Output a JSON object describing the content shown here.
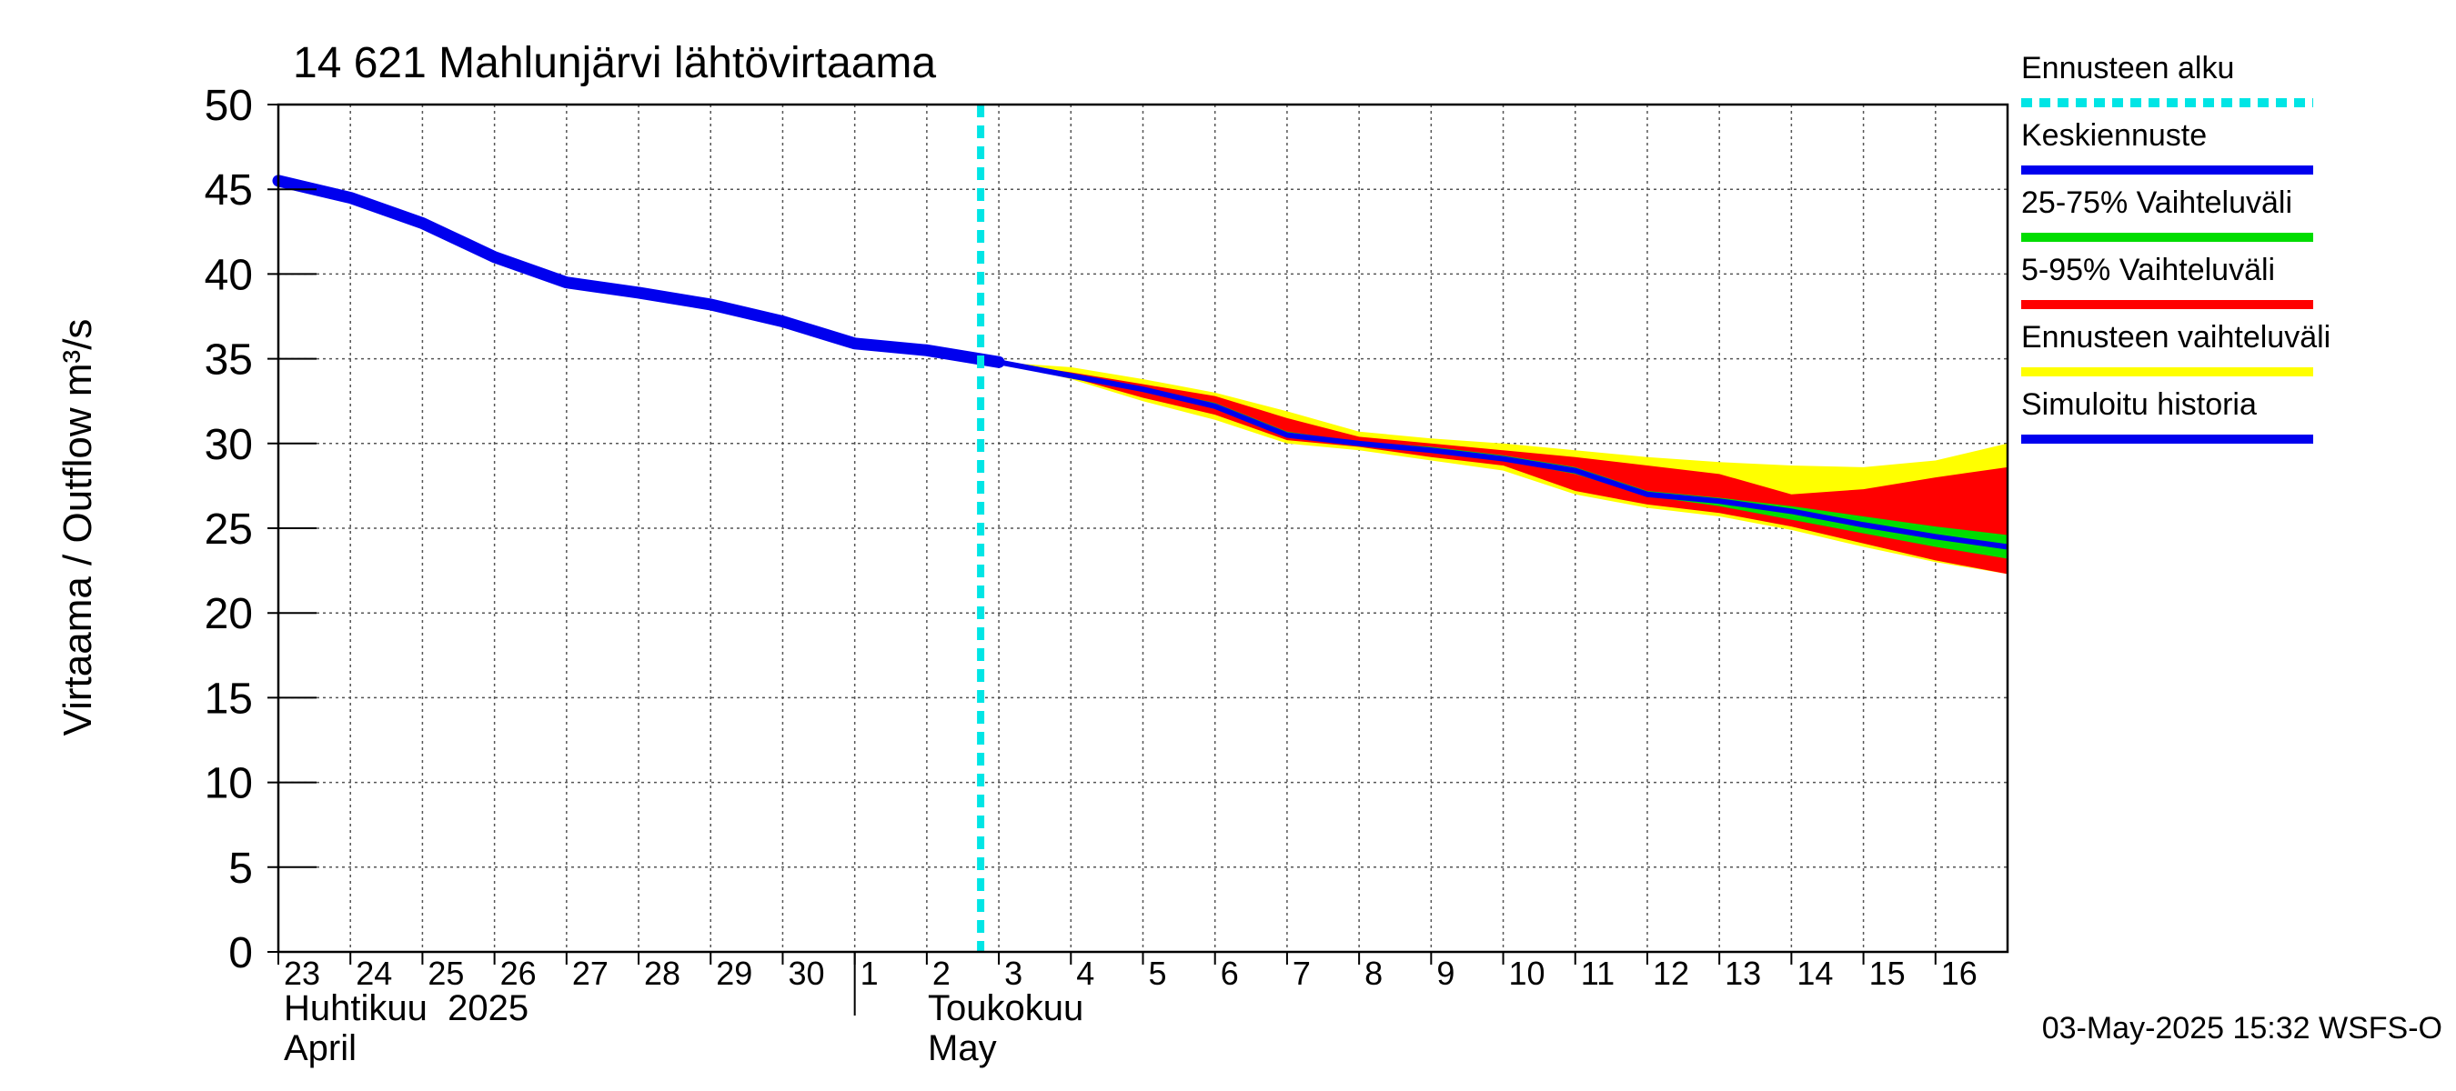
{
  "chart_data": {
    "type": "area",
    "title": "14 621 Mahlunjärvi lähtövirtaama",
    "ylabel": "Virtaama / Outflow    m³/s",
    "ylim": [
      0,
      50
    ],
    "y_ticks": [
      "0",
      "5",
      "10",
      "15",
      "20",
      "25",
      "30",
      "35",
      "40",
      "45",
      "50"
    ],
    "x_range": [
      "2025-04-23",
      "2025-05-17"
    ],
    "x_tick_labels": [
      "23",
      "24",
      "25",
      "26",
      "27",
      "28",
      "29",
      "30",
      "1",
      "2",
      "3",
      "4",
      "5",
      "6",
      "7",
      "8",
      "9",
      "10",
      "11",
      "12",
      "13",
      "14",
      "15",
      "16"
    ],
    "x_tick_dates": [
      "2025-04-23",
      "2025-04-24",
      "2025-04-25",
      "2025-04-26",
      "2025-04-27",
      "2025-04-28",
      "2025-04-29",
      "2025-04-30",
      "2025-05-01",
      "2025-05-02",
      "2025-05-03",
      "2025-05-04",
      "2025-05-05",
      "2025-05-06",
      "2025-05-07",
      "2025-05-08",
      "2025-05-09",
      "2025-05-10",
      "2025-05-11",
      "2025-05-12",
      "2025-05-13",
      "2025-05-14",
      "2025-05-15",
      "2025-05-16"
    ],
    "month_labels": [
      {
        "fi": "Huhtikuu  2025",
        "en": "April"
      },
      {
        "fi": "Toukokuu",
        "en": "May"
      }
    ],
    "month_boundary_date": "2025-05-01",
    "forecast_start": "2025-05-03",
    "timestamp": "03-May-2025 15:32 WSFS-O",
    "grid": true,
    "legend_position": "right",
    "legend": [
      {
        "label": "Ennusteen alku",
        "color": "#00e5e5",
        "style": "dashed"
      },
      {
        "label": "Keskiennuste",
        "color": "#0000ee",
        "style": "solid"
      },
      {
        "label": "25-75% Vaihteluväli",
        "color": "#00dd00",
        "style": "solid"
      },
      {
        "label": "5-95% Vaihteluväli",
        "color": "#ff0000",
        "style": "solid"
      },
      {
        "label": "Ennusteen vaihteluväli",
        "color": "#ffff00",
        "style": "solid"
      },
      {
        "label": "Simuloitu historia",
        "color": "#0000ee",
        "style": "solid"
      }
    ],
    "series": [
      {
        "name": "Simuloitu historia",
        "x": [
          "2025-04-23",
          "2025-04-24",
          "2025-04-25",
          "2025-04-26",
          "2025-04-27",
          "2025-04-28",
          "2025-04-29",
          "2025-04-30",
          "2025-05-01",
          "2025-05-02",
          "2025-05-03"
        ],
        "values": [
          45.5,
          44.5,
          43.0,
          41.0,
          39.5,
          38.9,
          38.2,
          37.2,
          35.9,
          35.5,
          34.8
        ]
      },
      {
        "name": "Keskiennuste",
        "x": [
          "2025-05-03",
          "2025-05-04",
          "2025-05-05",
          "2025-05-06",
          "2025-05-07",
          "2025-05-08",
          "2025-05-09",
          "2025-05-10",
          "2025-05-11",
          "2025-05-12",
          "2025-05-13",
          "2025-05-14",
          "2025-05-15",
          "2025-05-16",
          "2025-05-17"
        ],
        "values": [
          34.8,
          34.0,
          33.2,
          32.2,
          30.5,
          30.0,
          29.6,
          29.1,
          28.4,
          27.0,
          26.6,
          26.0,
          25.2,
          24.5,
          23.9
        ]
      },
      {
        "name": "25-75% Vaihteluväli",
        "x": [
          "2025-05-03",
          "2025-05-04",
          "2025-05-05",
          "2025-05-06",
          "2025-05-07",
          "2025-05-08",
          "2025-05-09",
          "2025-05-10",
          "2025-05-11",
          "2025-05-12",
          "2025-05-13",
          "2025-05-14",
          "2025-05-15",
          "2025-05-16",
          "2025-05-17"
        ],
        "low": [
          34.8,
          34.0,
          33.1,
          32.1,
          30.4,
          29.9,
          29.5,
          29.0,
          28.2,
          26.9,
          26.3,
          25.5,
          24.7,
          23.9,
          23.2
        ],
        "high": [
          34.8,
          34.1,
          33.3,
          32.4,
          30.7,
          30.1,
          29.8,
          29.3,
          28.6,
          27.2,
          26.8,
          26.3,
          25.7,
          25.1,
          24.6
        ]
      },
      {
        "name": "5-95% Vaihteluväli",
        "x": [
          "2025-05-03",
          "2025-05-04",
          "2025-05-05",
          "2025-05-06",
          "2025-05-07",
          "2025-05-08",
          "2025-05-09",
          "2025-05-10",
          "2025-05-11",
          "2025-05-12",
          "2025-05-13",
          "2025-05-14",
          "2025-05-15",
          "2025-05-16",
          "2025-05-17"
        ],
        "low": [
          34.8,
          33.9,
          32.7,
          31.7,
          30.2,
          29.8,
          29.2,
          28.7,
          27.2,
          26.4,
          25.9,
          25.1,
          24.1,
          23.1,
          22.3
        ],
        "high": [
          34.8,
          34.2,
          33.5,
          32.8,
          31.5,
          30.4,
          30.0,
          29.6,
          29.2,
          28.7,
          28.2,
          27.0,
          27.3,
          28.0,
          28.6
        ]
      },
      {
        "name": "Ennusteen vaihteluväli",
        "x": [
          "2025-05-03",
          "2025-05-04",
          "2025-05-05",
          "2025-05-06",
          "2025-05-07",
          "2025-05-08",
          "2025-05-09",
          "2025-05-10",
          "2025-05-11",
          "2025-05-12",
          "2025-05-13",
          "2025-05-14",
          "2025-05-15",
          "2025-05-16",
          "2025-05-17"
        ],
        "low": [
          34.8,
          33.8,
          32.5,
          31.4,
          30.0,
          29.6,
          29.0,
          28.4,
          27.0,
          26.2,
          25.7,
          24.9,
          23.9,
          23.0,
          22.3
        ],
        "high": [
          34.8,
          34.5,
          33.8,
          33.0,
          31.9,
          30.7,
          30.3,
          30.0,
          29.6,
          29.2,
          28.9,
          28.7,
          28.6,
          29.0,
          30.0
        ]
      }
    ]
  }
}
